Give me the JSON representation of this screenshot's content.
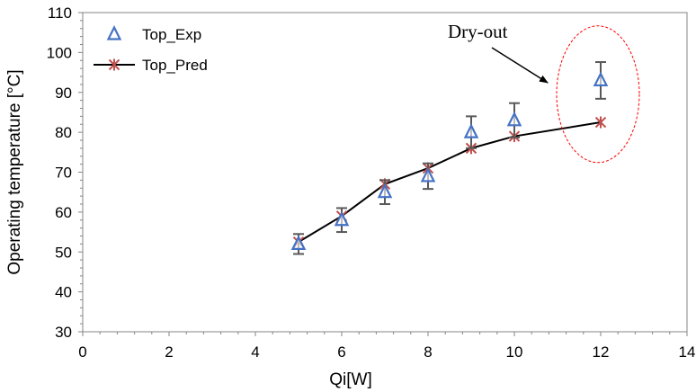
{
  "chart_data": {
    "type": "scatter",
    "xlabel": "Qi[W]",
    "ylabel": "Operating temperature [°C]",
    "xlim": [
      0,
      14
    ],
    "ylim": [
      30,
      110
    ],
    "xticks": [
      0,
      2,
      4,
      6,
      8,
      10,
      12,
      14
    ],
    "yticks": [
      30,
      40,
      50,
      60,
      70,
      80,
      90,
      100,
      110
    ],
    "grid": false,
    "legend_position": "top-left",
    "series": [
      {
        "name": "Top_Exp",
        "kind": "markers-with-error-bars",
        "marker": "open-triangle",
        "color": "#4472C4",
        "error_bar_color": "#595959",
        "x": [
          5,
          6,
          7,
          8,
          9,
          10,
          12
        ],
        "y": [
          52,
          58,
          65,
          69,
          80,
          83,
          93
        ],
        "error": [
          2.5,
          3,
          3,
          3.2,
          4,
          4.3,
          4.6
        ]
      },
      {
        "name": "Top_Pred",
        "kind": "line-with-markers",
        "marker": "asterisk",
        "color": "#C0504D",
        "line_color": "#000000",
        "x": [
          5,
          6,
          7,
          8,
          9,
          10,
          12
        ],
        "y": [
          52.5,
          59,
          67,
          71,
          76,
          79,
          82.5
        ]
      }
    ],
    "annotations": [
      {
        "text": "Dry-out",
        "target_x": 12,
        "target_y": 90,
        "shape": "dashed-ellipse",
        "color": "#FF0000"
      }
    ]
  }
}
